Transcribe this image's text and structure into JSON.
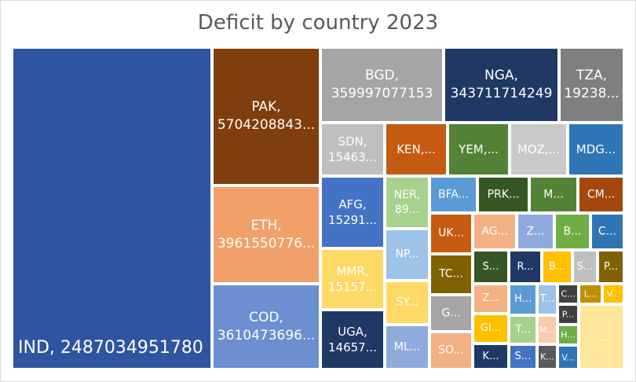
{
  "chart_data": {
    "type": "treemap",
    "title": "Deficit by country 2023",
    "tiles": [
      {
        "code": "IND",
        "label": "IND, 2487034951780",
        "color": "#2f55a0"
      },
      {
        "code": "PAK",
        "label": "PAK,\n5704208843...",
        "color": "#7f3e0c"
      },
      {
        "code": "ETH",
        "label": "ETH,\n3961550776...",
        "color": "#f2a06a"
      },
      {
        "code": "COD",
        "label": "COD,\n3610473696...",
        "color": "#6b8fd0"
      },
      {
        "code": "BGD",
        "label": "BGD,\n359997077153",
        "color": "#a5a5a5"
      },
      {
        "code": "NGA",
        "label": "NGA,\n343711714249",
        "color": "#203864"
      },
      {
        "code": "TZA",
        "label": "TZA,\n19238...",
        "color": "#7f7f7f"
      },
      {
        "code": "SDN",
        "label": "SDN,\n15463...",
        "color": "#bfbfbf"
      },
      {
        "code": "KEN",
        "label": "KEN,...",
        "color": "#c55a11"
      },
      {
        "code": "YEM",
        "label": "YEM,...",
        "color": "#538135"
      },
      {
        "code": "MOZ",
        "label": "MOZ,...",
        "color": "#c9c9c9"
      },
      {
        "code": "MDG",
        "label": "MDG...",
        "color": "#2e75b6"
      },
      {
        "code": "AFG",
        "label": "AFG,\n15291...",
        "color": "#4472c4"
      },
      {
        "code": "NER",
        "label": "NER,\n89...",
        "color": "#a9d18e"
      },
      {
        "code": "BFA",
        "label": "BFA...",
        "color": "#5b9bd5"
      },
      {
        "code": "PRK",
        "label": "PRK...",
        "color": "#375623"
      },
      {
        "code": "M1",
        "label": "M...",
        "color": "#548235"
      },
      {
        "code": "CM",
        "label": "CM...",
        "color": "#a3470c"
      },
      {
        "code": "MMR",
        "label": "MMR,\n15157...",
        "color": "#ffd966"
      },
      {
        "code": "NP",
        "label": "NP...",
        "color": "#9dc3e6"
      },
      {
        "code": "UK",
        "label": "UK...",
        "color": "#c55a11"
      },
      {
        "code": "AG",
        "label": "AG...",
        "color": "#f4b183"
      },
      {
        "code": "Z1",
        "label": "Z...",
        "color": "#8faadc"
      },
      {
        "code": "B1",
        "label": "B...",
        "color": "#70ad47"
      },
      {
        "code": "C1",
        "label": "C...",
        "color": "#2e75b6"
      },
      {
        "code": "SY",
        "label": "SY...",
        "color": "#ffd966"
      },
      {
        "code": "TC",
        "label": "TC...",
        "color": "#806000"
      },
      {
        "code": "S1",
        "label": "S...",
        "color": "#375623"
      },
      {
        "code": "R",
        "label": "R...",
        "color": "#203864"
      },
      {
        "code": "B2",
        "label": "B...",
        "color": "#ffc000"
      },
      {
        "code": "S2",
        "label": "S...",
        "color": "#bfbfbf"
      },
      {
        "code": "P1",
        "label": "P...",
        "color": "#806000"
      },
      {
        "code": "UGA",
        "label": "UGA,\n14657...",
        "color": "#203864"
      },
      {
        "code": "G",
        "label": "G...",
        "color": "#a5a5a5"
      },
      {
        "code": "Z2",
        "label": "Z...",
        "color": "#f4b183"
      },
      {
        "code": "H1",
        "label": "H...",
        "color": "#5b9bd5"
      },
      {
        "code": "T1",
        "label": "T...",
        "color": "#9dc3e6"
      },
      {
        "code": "C2",
        "label": "C...",
        "color": "#404040"
      },
      {
        "code": "L",
        "label": "L...",
        "color": "#bf9000"
      },
      {
        "code": "V1",
        "label": "V...",
        "color": "#ffc000"
      },
      {
        "code": "ML",
        "label": "ML...",
        "color": "#8faadc"
      },
      {
        "code": "SO",
        "label": "SO...",
        "color": "#f4b183"
      },
      {
        "code": "GI",
        "label": "GI...",
        "color": "#ffc000"
      },
      {
        "code": "T2",
        "label": "T...",
        "color": "#a9d18e"
      },
      {
        "code": "M2",
        "label": "M...",
        "color": "#f8cbad"
      },
      {
        "code": "P2",
        "label": "P...",
        "color": "#404040"
      },
      {
        "code": "H2",
        "label": "H...",
        "color": "#70ad47"
      },
      {
        "code": "K1",
        "label": "K...",
        "color": "#203864"
      },
      {
        "code": "S3",
        "label": "S...",
        "color": "#4472c4"
      },
      {
        "code": "K2",
        "label": "K...",
        "color": "#595959"
      },
      {
        "code": "V2",
        "label": "V...",
        "color": "#2e75b6"
      },
      {
        "code": "REST",
        "label": "...",
        "color": "#ffe699"
      }
    ]
  }
}
